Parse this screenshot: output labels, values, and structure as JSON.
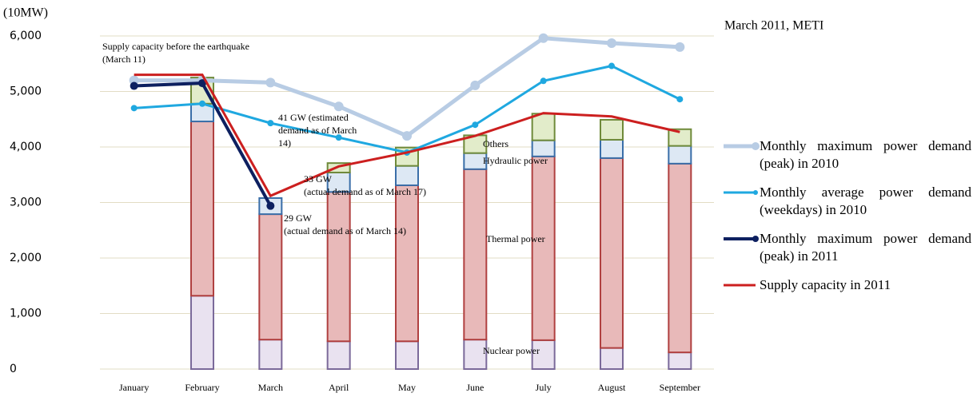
{
  "chart_data": {
    "type": "bar_line",
    "unit_label": "(10MW)",
    "source": "March 2011, METI",
    "categories": [
      "January",
      "February",
      "March",
      "April",
      "May",
      "June",
      "July",
      "August",
      "September"
    ],
    "ylim": [
      0,
      6000
    ],
    "yticks": [
      0,
      {
        "value": 1000,
        "label": "1,000"
      },
      {
        "value": 2000,
        "label": "2,000"
      },
      {
        "value": 3000,
        "label": "3,000"
      },
      {
        "value": 4000,
        "label": "4,000"
      },
      {
        "value": 5000,
        "label": "5,000"
      },
      {
        "value": 6000,
        "label": "6,000"
      }
    ],
    "grid": true,
    "bar_series": [
      {
        "name": "Nuclear power",
        "color": "#e9e2f0",
        "edge": "#7b6a9a",
        "values": [
          null,
          1320,
          530,
          500,
          500,
          530,
          520,
          380,
          300
        ]
      },
      {
        "name": "Thermal power",
        "color": "#e8b9b9",
        "edge": "#b04040",
        "values": [
          null,
          3140,
          2260,
          2690,
          2810,
          3070,
          3310,
          3420,
          3400
        ]
      },
      {
        "name": "Hydraulic power",
        "color": "#dde8f4",
        "edge": "#3a6ea8",
        "values": [
          null,
          320,
          290,
          350,
          350,
          290,
          290,
          330,
          320
        ]
      },
      {
        "name": "Others",
        "color": "#e2ecca",
        "edge": "#6f8a3a",
        "values": [
          null,
          470,
          0,
          170,
          330,
          320,
          480,
          360,
          300
        ]
      }
    ],
    "series": [
      {
        "name": "Monthly maximum power demand (peak) in 2010",
        "color": "#b8cce4",
        "width": 5,
        "values": [
          5200,
          5200,
          5160,
          4730,
          4200,
          5110,
          5960,
          5870,
          5800
        ]
      },
      {
        "name": "Monthly average power demand (weekdays) in 2010",
        "color": "#1fa8e0",
        "width": 3,
        "values": [
          4700,
          4780,
          4430,
          4170,
          3900,
          4400,
          5190,
          5460,
          4860
        ]
      },
      {
        "name": "Monthly maximum power demand (peak) in 2011",
        "color": "#0d2060",
        "width": 4,
        "values": [
          5100,
          5150,
          2940,
          null,
          null,
          null,
          null,
          null,
          null
        ]
      },
      {
        "name": "Supply capacity in 2011",
        "color": "#cc1f1f",
        "width": 3,
        "values": [
          5300,
          5300,
          3120,
          3650,
          3900,
          4200,
          4610,
          4550,
          4270
        ]
      }
    ],
    "annotations": [
      [
        "Supply capacity before the earthquake",
        "(March 11)"
      ],
      [
        "41 GW (estimated",
        "demand as of March",
        "14)"
      ],
      [
        "33 GW",
        "(actual demand as of March 17)"
      ],
      [
        "29 GW",
        "(actual demand as of March 14)"
      ]
    ]
  }
}
